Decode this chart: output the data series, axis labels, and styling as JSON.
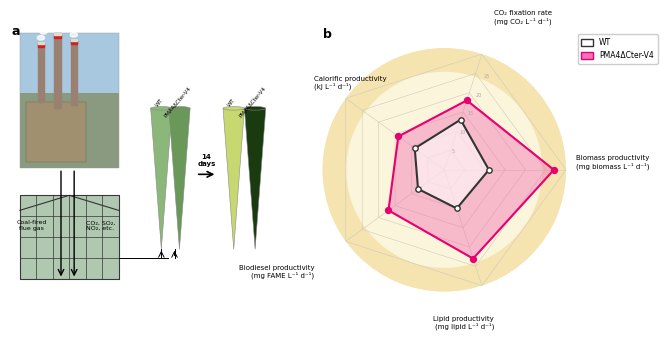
{
  "panel_b": {
    "categories": [
      "Biomass productivity\n(mg biomass L⁻¹ d⁻¹)",
      "CO₂ fixation rate\n(mg CO₂ L⁻¹ d⁻¹)",
      "Calorific productivity\n(kJ L⁻¹ d⁻¹)",
      "Biodiesel productivity\n(mg FAME L⁻¹ d⁻¹)",
      "Lipid productivity\n(mg lipid L⁻¹ d⁻¹)"
    ],
    "wt_values": [
      11,
      13,
      9,
      8,
      10
    ],
    "mutant_values": [
      27,
      18,
      14,
      17,
      23
    ],
    "max_value": 30,
    "wt_color": "#333333",
    "mutant_color": "#E8006E",
    "mutant_fill": "#F472B6",
    "bg_outer_color": "#F5E3B0",
    "bg_inner_color": "#FBF5DC",
    "wt_label": "WT",
    "mutant_label": "PMA4ΔCter-V4",
    "ring_color": "#CCCCBB",
    "ring_values": [
      5,
      10,
      15,
      20,
      25,
      30
    ]
  },
  "panel_a": {
    "coal_fired_text": "Coal-fired\nflue gas",
    "arrow_text": "CO₂, SO₂,\nNO₂, etc.",
    "days_text": "14\ndays",
    "label_wt": "WT",
    "label_mutant": "PMA4ΔCter-V4",
    "factory_colors": [
      "#8BA7C0",
      "#A0BCC8",
      "#C8D8E0",
      "#D4E8F0"
    ],
    "tube_before_wt": "#8BB87A",
    "tube_before_mut": "#6A9858",
    "tube_after_wt": "#C8D870",
    "tube_after_mut": "#1A3A10",
    "greenhouse_color": "#B0C8B0"
  }
}
